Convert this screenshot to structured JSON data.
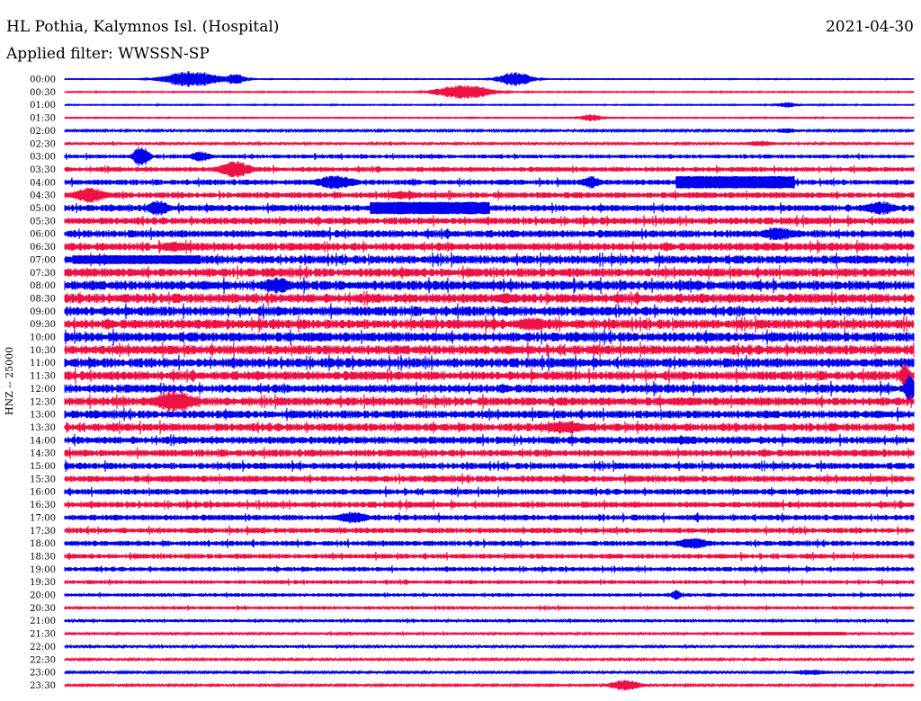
{
  "header": {
    "station": "HL Pothia, Kalymnos Isl. (Hospital)",
    "date": "2021-04-30",
    "filter": "Applied filter: WWSSN-SP"
  },
  "chart_data": {
    "type": "line",
    "title": "HL Pothia, Kalymnos Isl. (Hospital)",
    "subtitle": "Applied filter: WWSSN-SP",
    "date": "2021-04-30",
    "ylabel": "HNZ -- 25000",
    "colors": [
      "#0000ee",
      "#ee1144"
    ],
    "row_labels": [
      "00:00",
      "00:30",
      "01:00",
      "01:30",
      "02:00",
      "02:30",
      "03:00",
      "03:30",
      "04:00",
      "04:30",
      "05:00",
      "05:30",
      "06:00",
      "06:30",
      "07:00",
      "07:30",
      "08:00",
      "08:30",
      "09:00",
      "09:30",
      "10:00",
      "10:30",
      "11:00",
      "11:30",
      "12:00",
      "12:30",
      "13:00",
      "13:30",
      "14:00",
      "14:30",
      "15:00",
      "15:30",
      "16:00",
      "16:30",
      "17:00",
      "17:30",
      "18:00",
      "18:30",
      "19:00",
      "19:30",
      "20:00",
      "20:30",
      "21:00",
      "21:30",
      "22:00",
      "22:30",
      "23:00",
      "23:30"
    ],
    "noise_level": [
      0.3,
      0.4,
      0.4,
      0.4,
      0.8,
      1.0,
      1.6,
      2.0,
      2.2,
      2.4,
      2.6,
      2.8,
      3.0,
      3.2,
      3.4,
      3.5,
      3.8,
      3.8,
      3.8,
      3.8,
      3.8,
      3.8,
      3.8,
      3.6,
      3.4,
      3.4,
      3.2,
      3.2,
      3.0,
      2.8,
      2.6,
      2.6,
      2.4,
      2.4,
      2.3,
      2.2,
      2.1,
      2.0,
      1.8,
      1.6,
      1.4,
      1.3,
      1.2,
      1.1,
      1.0,
      0.9,
      0.9,
      0.8
    ],
    "events": [
      {
        "row": 0,
        "t": 0.15,
        "amp": 9,
        "dur": 0.05
      },
      {
        "row": 0,
        "t": 0.2,
        "amp": 6,
        "dur": 0.02
      },
      {
        "row": 0,
        "t": 0.53,
        "amp": 8,
        "dur": 0.03
      },
      {
        "row": 1,
        "t": 0.47,
        "amp": 8,
        "dur": 0.05
      },
      {
        "row": 2,
        "t": 0.85,
        "amp": 3,
        "dur": 0.02
      },
      {
        "row": 3,
        "t": 0.62,
        "amp": 4,
        "dur": 0.02
      },
      {
        "row": 4,
        "t": 0.85,
        "amp": 3,
        "dur": 0.02
      },
      {
        "row": 5,
        "t": 0.82,
        "amp": 3,
        "dur": 0.03
      },
      {
        "row": 6,
        "t": 0.09,
        "amp": 12,
        "dur": 0.015
      },
      {
        "row": 6,
        "t": 0.16,
        "amp": 6,
        "dur": 0.02
      },
      {
        "row": 7,
        "t": 0.2,
        "amp": 10,
        "dur": 0.03
      },
      {
        "row": 8,
        "t": 0.32,
        "amp": 8,
        "dur": 0.04
      },
      {
        "row": 8,
        "t": 0.62,
        "amp": 7,
        "dur": 0.02
      },
      {
        "row": 8,
        "t": 0.72,
        "amp": 7,
        "dur": 0.14,
        "plateau": true
      },
      {
        "row": 9,
        "t": 0.03,
        "amp": 9,
        "dur": 0.03
      },
      {
        "row": 9,
        "t": 0.4,
        "amp": 5,
        "dur": 0.03
      },
      {
        "row": 10,
        "t": 0.11,
        "amp": 9,
        "dur": 0.02
      },
      {
        "row": 10,
        "t": 0.36,
        "amp": 7,
        "dur": 0.14,
        "plateau": true
      },
      {
        "row": 10,
        "t": 0.96,
        "amp": 8,
        "dur": 0.03
      },
      {
        "row": 12,
        "t": 0.84,
        "amp": 8,
        "dur": 0.03
      },
      {
        "row": 13,
        "t": 0.13,
        "amp": 6,
        "dur": 0.03
      },
      {
        "row": 14,
        "t": 0.01,
        "amp": 5,
        "dur": 0.15,
        "plateau": true
      },
      {
        "row": 16,
        "t": 0.25,
        "amp": 9,
        "dur": 0.03
      },
      {
        "row": 17,
        "t": 0.52,
        "amp": 6,
        "dur": 0.03
      },
      {
        "row": 19,
        "t": 0.55,
        "amp": 8,
        "dur": 0.03
      },
      {
        "row": 23,
        "t": 0.99,
        "amp": 14,
        "dur": 0.01
      },
      {
        "row": 24,
        "t": 0.995,
        "amp": 16,
        "dur": 0.01
      },
      {
        "row": 25,
        "t": 0.13,
        "amp": 12,
        "dur": 0.04
      },
      {
        "row": 27,
        "t": 0.59,
        "amp": 8,
        "dur": 0.04
      },
      {
        "row": 28,
        "t": 0.73,
        "amp": 5,
        "dur": 0.03
      },
      {
        "row": 34,
        "t": 0.34,
        "amp": 7,
        "dur": 0.03
      },
      {
        "row": 36,
        "t": 0.74,
        "amp": 7,
        "dur": 0.03
      },
      {
        "row": 40,
        "t": 0.72,
        "amp": 6,
        "dur": 0.01
      },
      {
        "row": 43,
        "t": 0.82,
        "amp": 2,
        "dur": 0.1,
        "plateau": true
      },
      {
        "row": 46,
        "t": 0.88,
        "amp": 3,
        "dur": 0.04
      },
      {
        "row": 47,
        "t": 0.66,
        "amp": 6,
        "dur": 0.03
      }
    ]
  }
}
